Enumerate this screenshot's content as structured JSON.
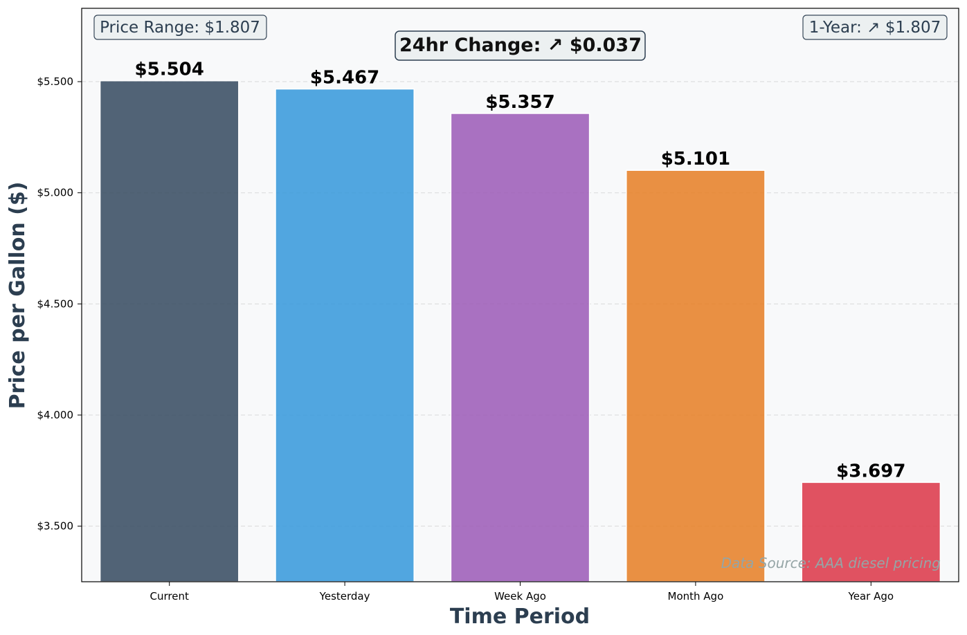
{
  "chart_data": {
    "type": "bar",
    "categories": [
      "Current",
      "Yesterday",
      "Week Ago",
      "Month Ago",
      "Year Ago"
    ],
    "values": [
      5.504,
      5.467,
      5.357,
      5.101,
      3.697
    ],
    "value_labels": [
      "$5.504",
      "$5.467",
      "$5.357",
      "$5.101",
      "$3.697"
    ],
    "colors": [
      "#34495e",
      "#3498db",
      "#9b59b6",
      "#e67e22",
      "#dc3545"
    ],
    "xlabel": "Time Period",
    "ylabel": "Price per Gallon ($)",
    "ylim": [
      3.25,
      5.83
    ],
    "yticks": [
      3.5,
      4.0,
      4.5,
      5.0,
      5.5
    ],
    "ytick_labels": [
      "$3.500",
      "$4.000",
      "$4.500",
      "$5.000",
      "$5.500"
    ],
    "grid": "horizontal dashed",
    "annotations": {
      "price_range": "Price Range: $1.807",
      "change_24hr": "24hr Change: ↗ $0.037",
      "one_year": "1-Year: ↗ $1.807",
      "source": "Data Source: AAA diesel pricing"
    }
  }
}
